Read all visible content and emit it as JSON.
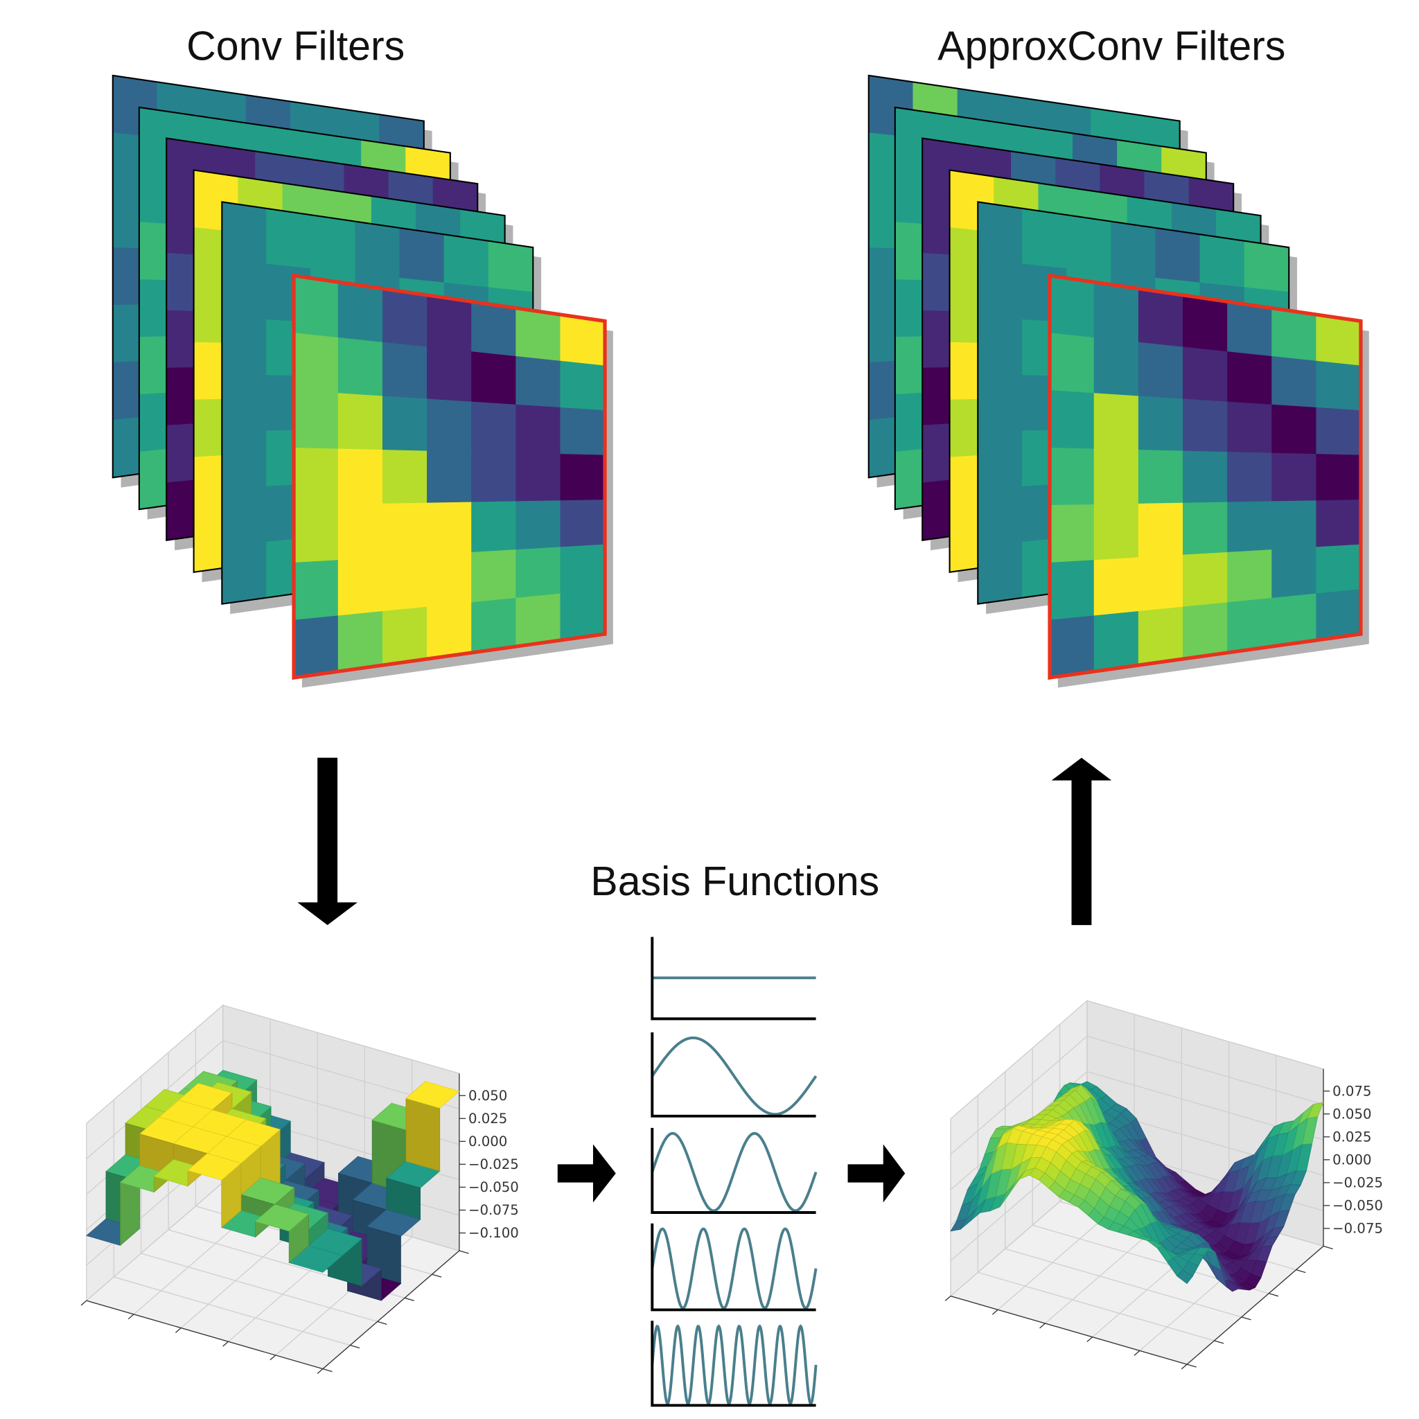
{
  "titles": {
    "conv": "Conv Filters",
    "approx": "ApproxConv Filters",
    "basis": "Basis Functions"
  },
  "colormap": "viridis",
  "highlight_color": "#e8321e",
  "curve_color": "#4a7f8c",
  "conv_filters": {
    "layers": [
      [
        "3443443",
        "4344334",
        "4443433",
        "3434343",
        "4343434",
        "3444343",
        "4343434"
      ],
      [
        "5555579",
        "5556678",
        "6565767",
        "5656566",
        "6565656",
        "5656565",
        "6565656"
      ],
      [
        "1122121",
        "1212112",
        "2121211",
        "1212121",
        "0101010",
        "1010101",
        "0101010"
      ],
      [
        "9877545",
        "8877656",
        "8787676",
        "9878767",
        "8787876",
        "9898787",
        "9999898"
      ],
      [
        "4554356",
        "4454545",
        "4545454",
        "4454545",
        "4545454",
        "4454545",
        "4545454"
      ],
      [
        "6421379",
        "7631035",
        "7843213",
        "8983210",
        "8999542",
        "6999765",
        "3789675"
      ]
    ]
  },
  "approx_filters": {
    "layers": [
      [
        "3744455",
        "5344334",
        "5443433",
        "4434343",
        "4343434",
        "3444343",
        "4343434"
      ],
      [
        "5555368",
        "5556678",
        "6565767",
        "5656566",
        "6565656",
        "5656565",
        "6565656"
      ],
      [
        "1132121",
        "1212112",
        "2121211",
        "1212121",
        "0101010",
        "1010101",
        "0101010"
      ],
      [
        "9866545",
        "8877656",
        "8787676",
        "9878767",
        "8787876",
        "9898787",
        "9999898"
      ],
      [
        "4554356",
        "4454545",
        "4545454",
        "4454545",
        "4545454",
        "4454545",
        "4545454"
      ],
      [
        "5410368",
        "6431034",
        "5842102",
        "6864210",
        "7896441",
        "5998745",
        "3587664"
      ]
    ]
  },
  "basis_functions": [
    {
      "cycles": 0
    },
    {
      "cycles": 1
    },
    {
      "cycles": 2
    },
    {
      "cycles": 4
    },
    {
      "cycles": 8
    }
  ],
  "surface_plots": [
    {
      "source": "conv_filters",
      "style": "stepped",
      "z_ticks": [
        "0.050",
        "0.025",
        "0.000",
        "−0.025",
        "−0.050",
        "−0.075",
        "−0.100"
      ]
    },
    {
      "source": "approx_filters",
      "style": "smooth",
      "z_ticks": [
        "0.075",
        "0.050",
        "0.025",
        "0.000",
        "−0.025",
        "−0.050",
        "−0.075"
      ]
    }
  ],
  "arrows": [
    "down",
    "right",
    "right",
    "up"
  ]
}
